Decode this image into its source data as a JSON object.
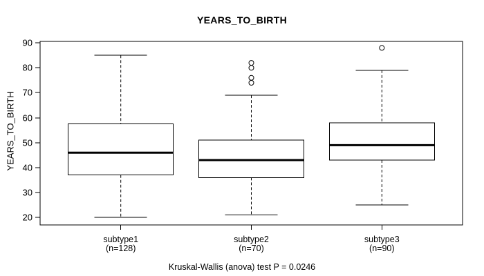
{
  "chart_data": {
    "type": "boxplot",
    "title": "YEARS_TO_BIRTH",
    "ylabel": "YEARS_TO_BIRTH",
    "annotation": "Kruskal-Wallis (anova) test P = 0.0246",
    "y_ticks": [
      20,
      30,
      40,
      50,
      60,
      70,
      80,
      90
    ],
    "y_axis_range": [
      17,
      90.6
    ],
    "grid": false,
    "groups": [
      {
        "label": "subtype1",
        "sublabel": "(n=128)",
        "whisker_low": 20,
        "q1": 37,
        "median": 46,
        "q3": 57.5,
        "whisker_high": 85,
        "outliers": []
      },
      {
        "label": "subtype2",
        "sublabel": "(n=70)",
        "whisker_low": 21,
        "q1": 36,
        "median": 43,
        "q3": 51,
        "whisker_high": 69,
        "outliers": [
          74,
          76,
          80,
          82
        ]
      },
      {
        "label": "subtype3",
        "sublabel": "(n=90)",
        "whisker_low": 25,
        "q1": 43,
        "median": 49,
        "q3": 58,
        "whisker_high": 79,
        "outliers": [
          88
        ]
      }
    ],
    "colors": {
      "line": "#000000",
      "box_fill": "#ffffff",
      "background": "#ffffff"
    }
  }
}
